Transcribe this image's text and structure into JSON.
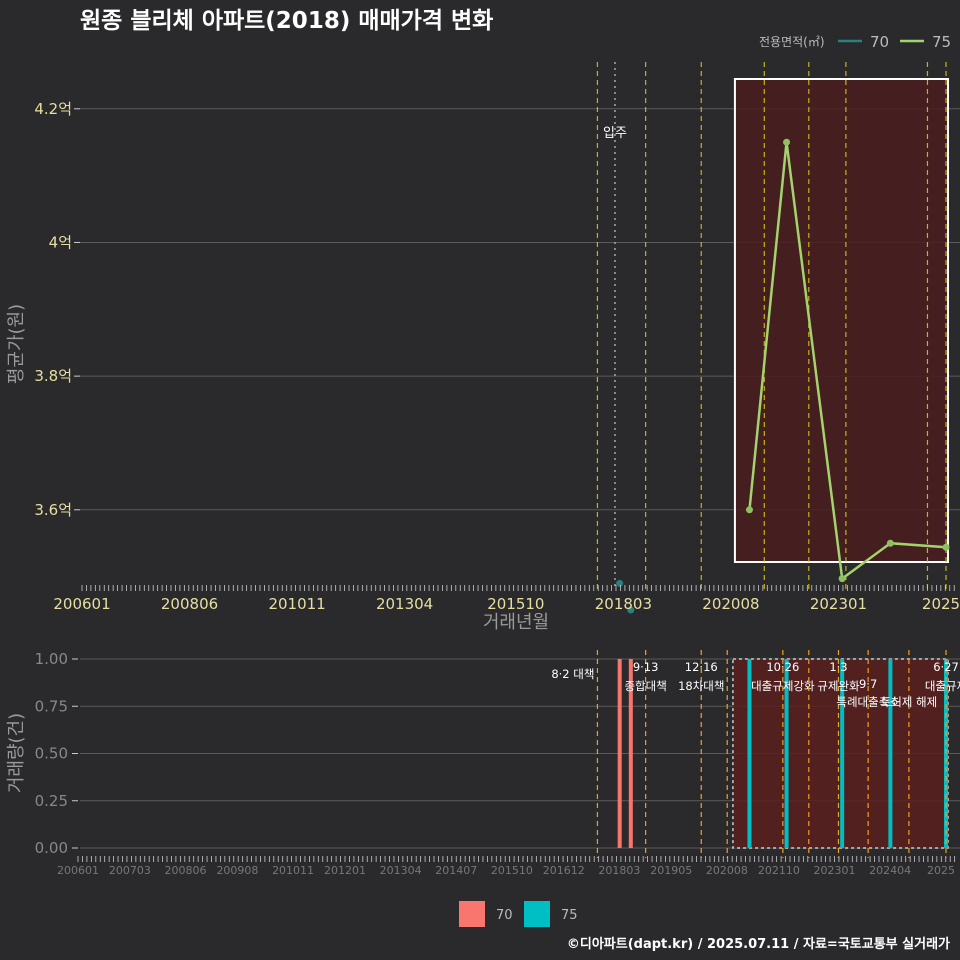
{
  "title": "원종 블리체 아파트(2018) 매매가격 변화",
  "footer": "©디아파트(dapt.kr) / 2025.07.11 / 자료=국토교통부 실거래가",
  "legend_top": {
    "title": "전용면적(㎡)",
    "items": [
      {
        "name": "70",
        "color": "#2a7f7f"
      },
      {
        "name": "75",
        "color": "#a3d36c"
      }
    ]
  },
  "legend_bottom": {
    "items": [
      {
        "name": "70",
        "color": "#f8766d"
      },
      {
        "name": "75",
        "color": "#00bfc4"
      }
    ]
  },
  "colors": {
    "background": "#2a2a2c",
    "grid": "#5a5a5a",
    "policy_line_top": "#d4c21a",
    "policy_line_bottom": "#f0a020",
    "highlight_fill": "#4a1c1e",
    "box": "#ffffff",
    "tick_text": "#e6dfa0"
  },
  "chart_data": [
    {
      "type": "line",
      "xlabel": "거래년월",
      "ylabel": "평균가(원)",
      "x_ticks": [
        "200601",
        "200806",
        "201011",
        "201304",
        "201510",
        "201803",
        "202008",
        "202301",
        "2025"
      ],
      "y_ticks": [
        "3.6억",
        "3.8억",
        "4억",
        "4.2억"
      ],
      "y_tick_values": [
        36000,
        38000,
        40000,
        42000
      ],
      "ylim": [
        34800,
        42700
      ],
      "x_range": [
        "2006-01",
        "2025-06"
      ],
      "annotation": {
        "label": "입주",
        "x": "2018-01"
      },
      "policy_lines": [
        "2017-08",
        "2018-09",
        "2019-12",
        "2021-05",
        "2022-05",
        "2023-03",
        "2025-01",
        "2025-06"
      ],
      "highlight_range": [
        "2020-08",
        "2025-06"
      ],
      "series": [
        {
          "name": "70",
          "type": "scatter",
          "points": [
            {
              "x": "2018-02",
              "y": 34900
            },
            {
              "x": "2018-05",
              "y": 34500
            }
          ]
        },
        {
          "name": "75",
          "type": "line",
          "points": [
            {
              "x": "2021-01",
              "y": 36000
            },
            {
              "x": "2021-11",
              "y": 41500
            },
            {
              "x": "2023-02",
              "y": 34970
            },
            {
              "x": "2024-03",
              "y": 35500
            },
            {
              "x": "2025-06",
              "y": 35440
            }
          ]
        }
      ]
    },
    {
      "type": "bar",
      "ylabel": "거래량(건)",
      "x_ticks": [
        "200601",
        "200703",
        "200806",
        "200908",
        "201011",
        "201201",
        "201304",
        "201407",
        "201510",
        "201612",
        "201803",
        "201905",
        "202008",
        "202110",
        "202301",
        "202404",
        "2025"
      ],
      "y_ticks": [
        "0.00",
        "0.25",
        "0.50",
        "0.75",
        "1.00"
      ],
      "y_tick_values": [
        0,
        0.25,
        0.5,
        0.75,
        1.0
      ],
      "ylim": [
        0,
        1.0
      ],
      "highlight_range": [
        "2020-08",
        "2025-06"
      ],
      "policy_lines": [
        {
          "x": "2017-08",
          "lines": [
            "8·2 대책"
          ]
        },
        {
          "x": "2018-09",
          "lines": [
            "9·13",
            "종합대책"
          ]
        },
        {
          "x": "2019-12",
          "lines": [
            "12·16",
            "18차대책"
          ]
        },
        {
          "x": "2020-07",
          "lines": []
        },
        {
          "x": "2021-10",
          "lines": [
            "10·26",
            "대출규제강화"
          ]
        },
        {
          "x": "2022-05",
          "lines": []
        },
        {
          "x": "2023-01",
          "lines": [
            "1·3",
            "규제완화"
          ]
        },
        {
          "x": "2023-09",
          "lines": [
            "9·7",
            "특례대출축소"
          ]
        },
        {
          "x": "2024-08",
          "lines": [
            "토허제 해제"
          ]
        },
        {
          "x": "2025-06",
          "lines": [
            "6·27",
            "대출규제"
          ]
        }
      ],
      "series": [
        {
          "name": "70",
          "bars": [
            {
              "x": "2018-02",
              "y": 1
            },
            {
              "x": "2018-05",
              "y": 1
            }
          ]
        },
        {
          "name": "75",
          "bars": [
            {
              "x": "2021-01",
              "y": 1
            },
            {
              "x": "2021-11",
              "y": 1
            },
            {
              "x": "2023-02",
              "y": 1
            },
            {
              "x": "2024-03",
              "y": 1
            },
            {
              "x": "2025-06",
              "y": 1
            }
          ]
        }
      ]
    }
  ]
}
